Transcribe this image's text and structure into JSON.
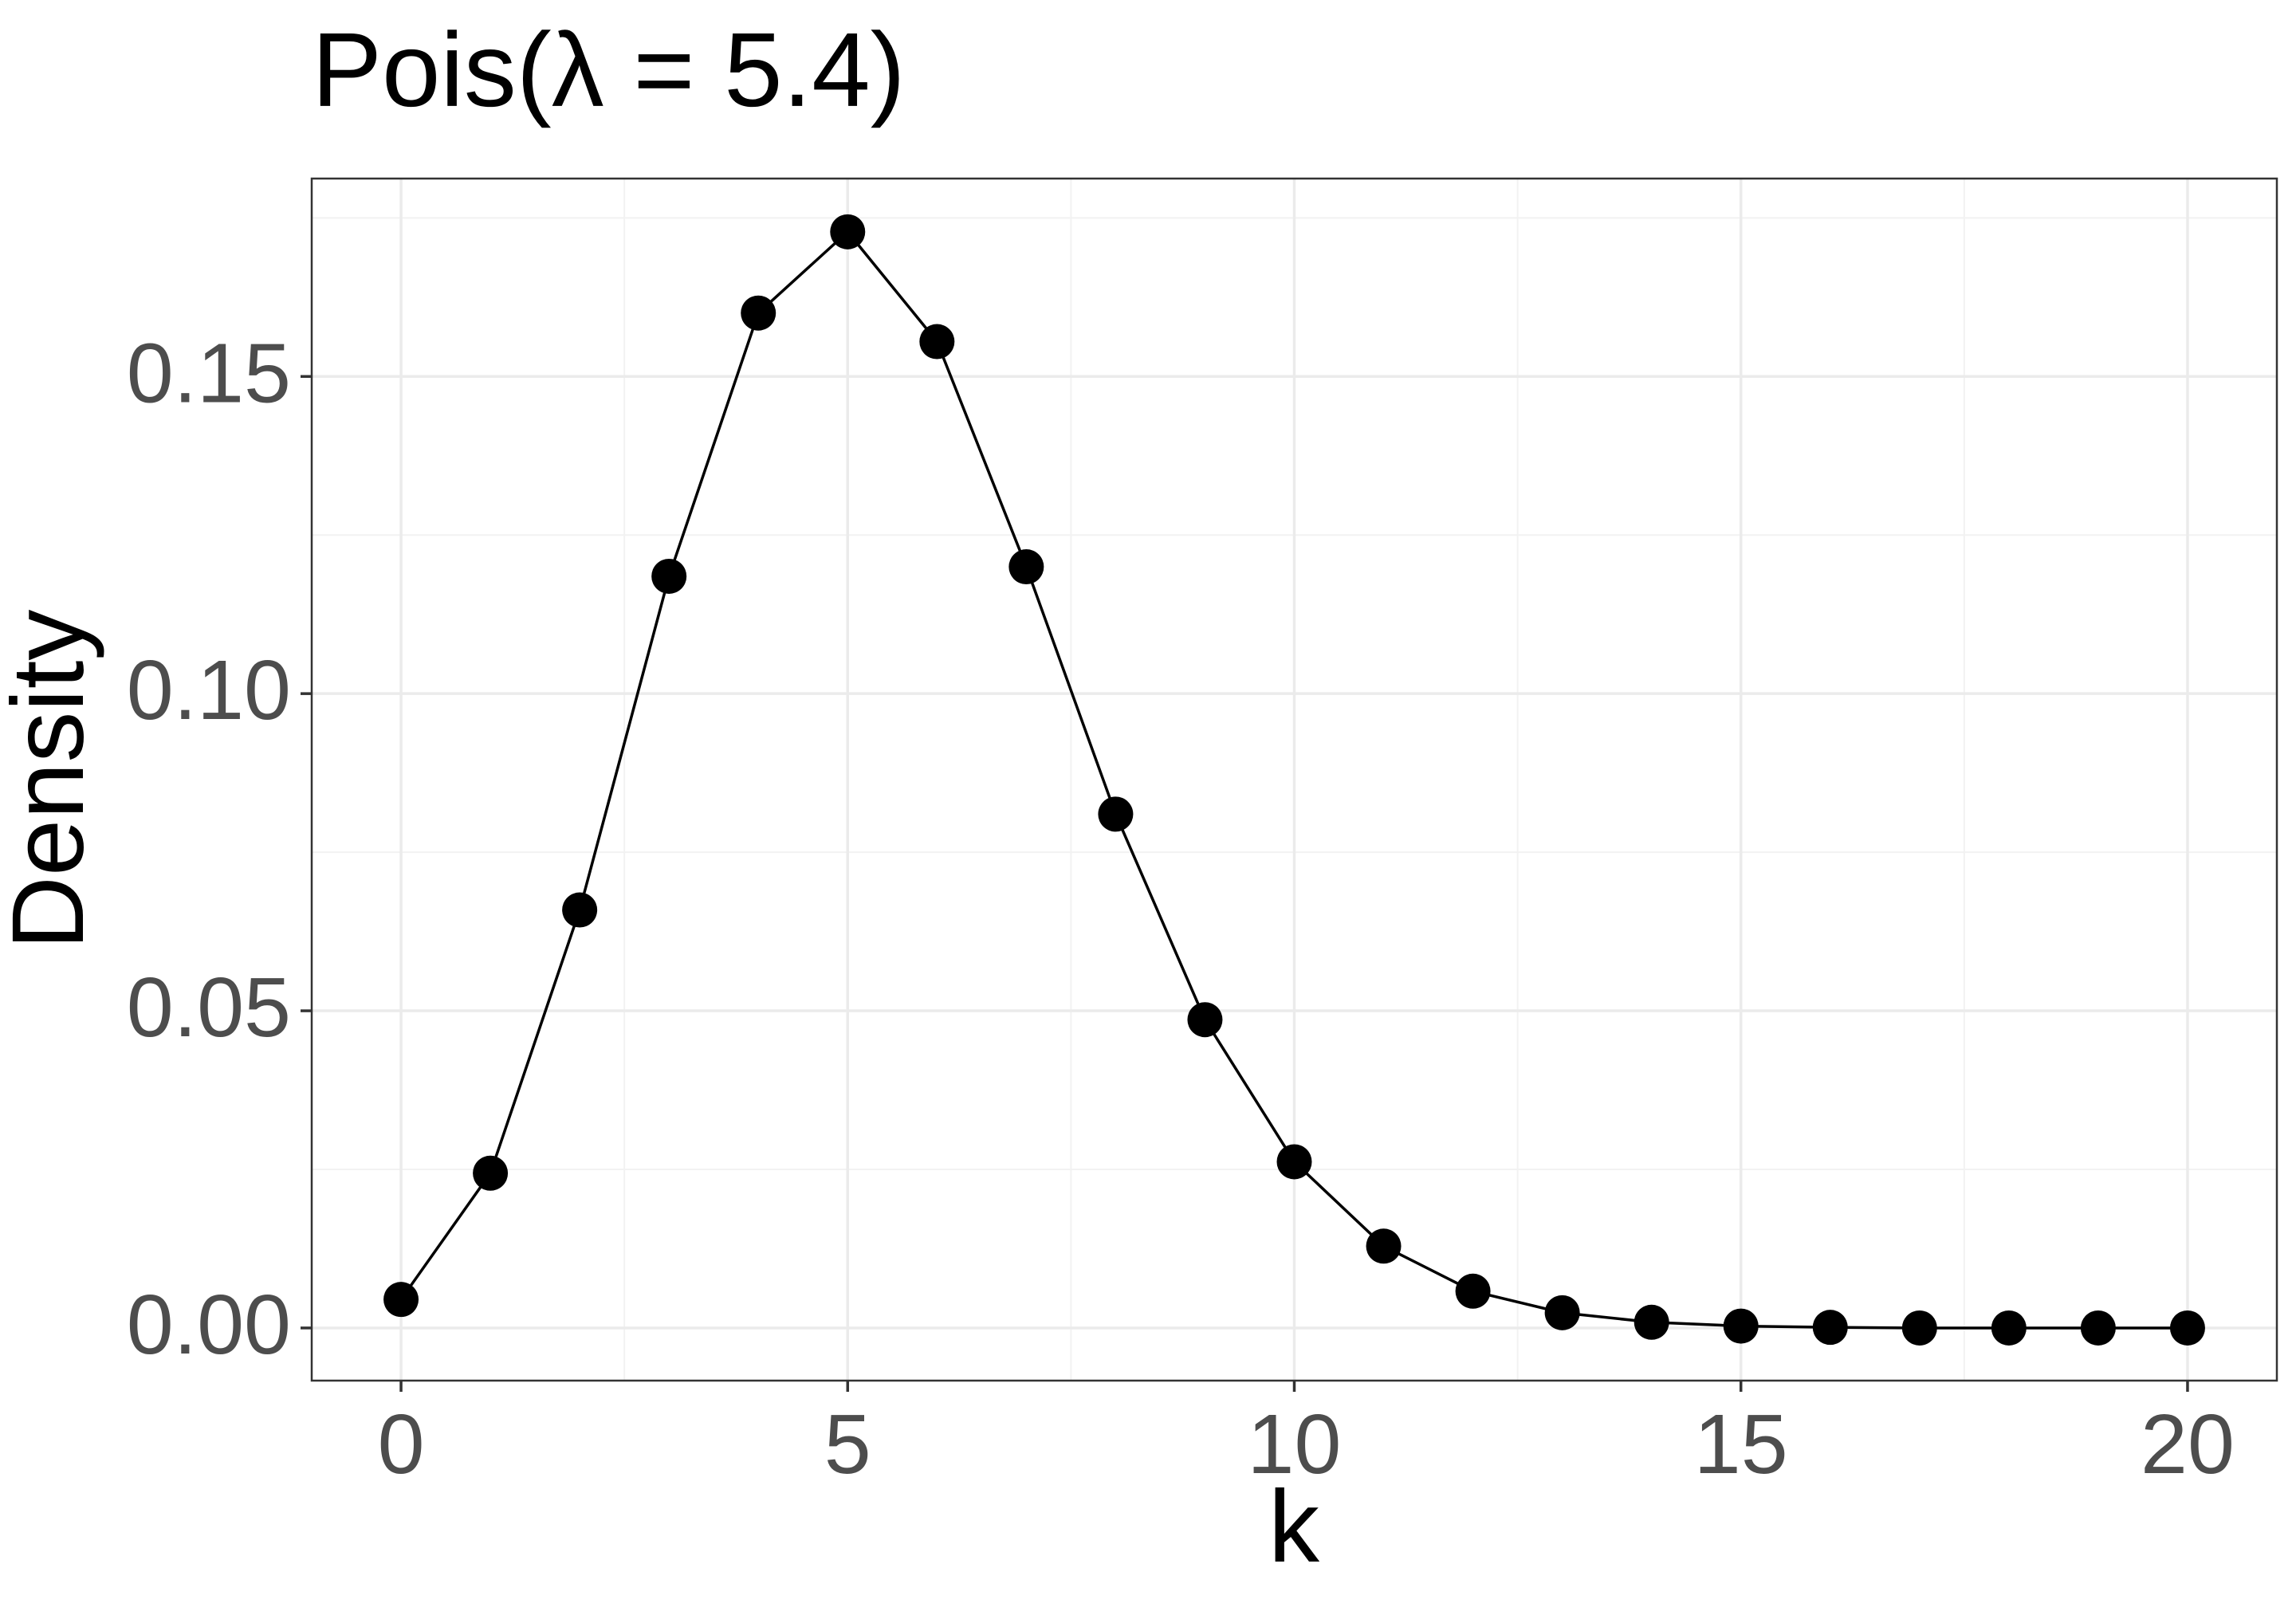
{
  "chart_data": {
    "type": "line",
    "title": "Pois(λ = 5.4)",
    "x_label": "k",
    "y_label": "Density",
    "x": [
      0,
      1,
      2,
      3,
      4,
      5,
      6,
      7,
      8,
      9,
      10,
      11,
      12,
      13,
      14,
      15,
      16,
      17,
      18,
      19,
      20
    ],
    "series": [
      {
        "name": "Density",
        "color": "#000000",
        "values": [
          0.0045,
          0.0244,
          0.0659,
          0.1185,
          0.16,
          0.1728,
          0.1555,
          0.12,
          0.081,
          0.0486,
          0.0262,
          0.0129,
          0.0058,
          0.0024,
          0.0009,
          0.0003,
          0.0001,
          0.0,
          0.0,
          0.0,
          0.0
        ]
      }
    ],
    "xlim": [
      -1,
      21
    ],
    "xticks": [
      0,
      5,
      10,
      15,
      20
    ],
    "ylim": [
      -0.0083,
      0.1812
    ],
    "yticks": [
      {
        "value": 0,
        "label": "0.00"
      },
      {
        "value": 0.05,
        "label": "0.05"
      },
      {
        "value": 0.1,
        "label": "0.10"
      },
      {
        "value": 0.15,
        "label": "0.15"
      }
    ],
    "grid": true,
    "markers": true
  }
}
